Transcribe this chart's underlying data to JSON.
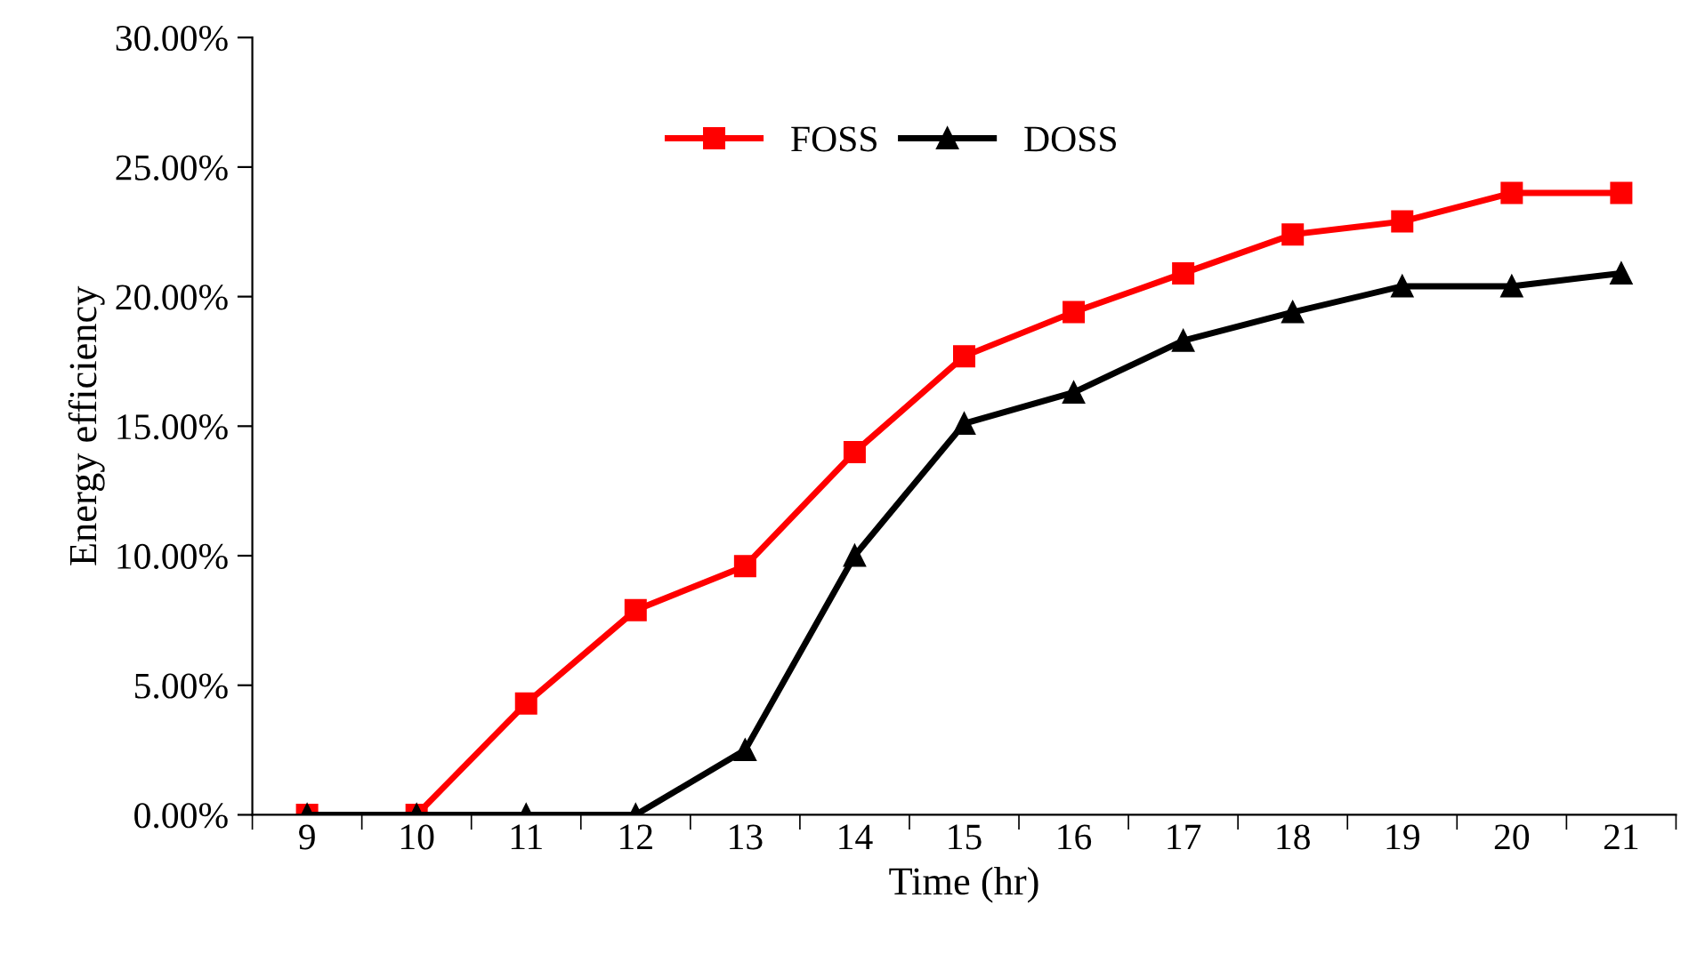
{
  "chart_data": {
    "type": "line",
    "xlabel": "Time (hr)",
    "ylabel": "Energy efficiency",
    "categories": [
      "9",
      "10",
      "11",
      "12",
      "13",
      "14",
      "15",
      "16",
      "17",
      "18",
      "19",
      "20",
      "21"
    ],
    "series": [
      {
        "name": "FOSS",
        "color": "#ff0000",
        "marker": "square",
        "values": [
          0,
          0,
          4.3,
          7.9,
          9.6,
          14.0,
          17.7,
          19.4,
          20.9,
          22.4,
          22.9,
          24.0,
          24.0
        ]
      },
      {
        "name": "DOSS",
        "color": "#000000",
        "marker": "triangle",
        "values": [
          0,
          0,
          0,
          0,
          2.5,
          10.0,
          15.1,
          16.3,
          18.3,
          19.4,
          20.4,
          20.4,
          20.9
        ]
      }
    ],
    "ylim": [
      0,
      30
    ],
    "yticks": [
      {
        "value": 0,
        "label": "0.00%"
      },
      {
        "value": 5,
        "label": "5.00%"
      },
      {
        "value": 10,
        "label": "10.00%"
      },
      {
        "value": 15,
        "label": "15.00%"
      },
      {
        "value": 20,
        "label": "20.00%"
      },
      {
        "value": 25,
        "label": "25.00%"
      },
      {
        "value": 30,
        "label": "30.00%"
      }
    ],
    "grid": false,
    "legend": "top",
    "line_style": "solid"
  }
}
